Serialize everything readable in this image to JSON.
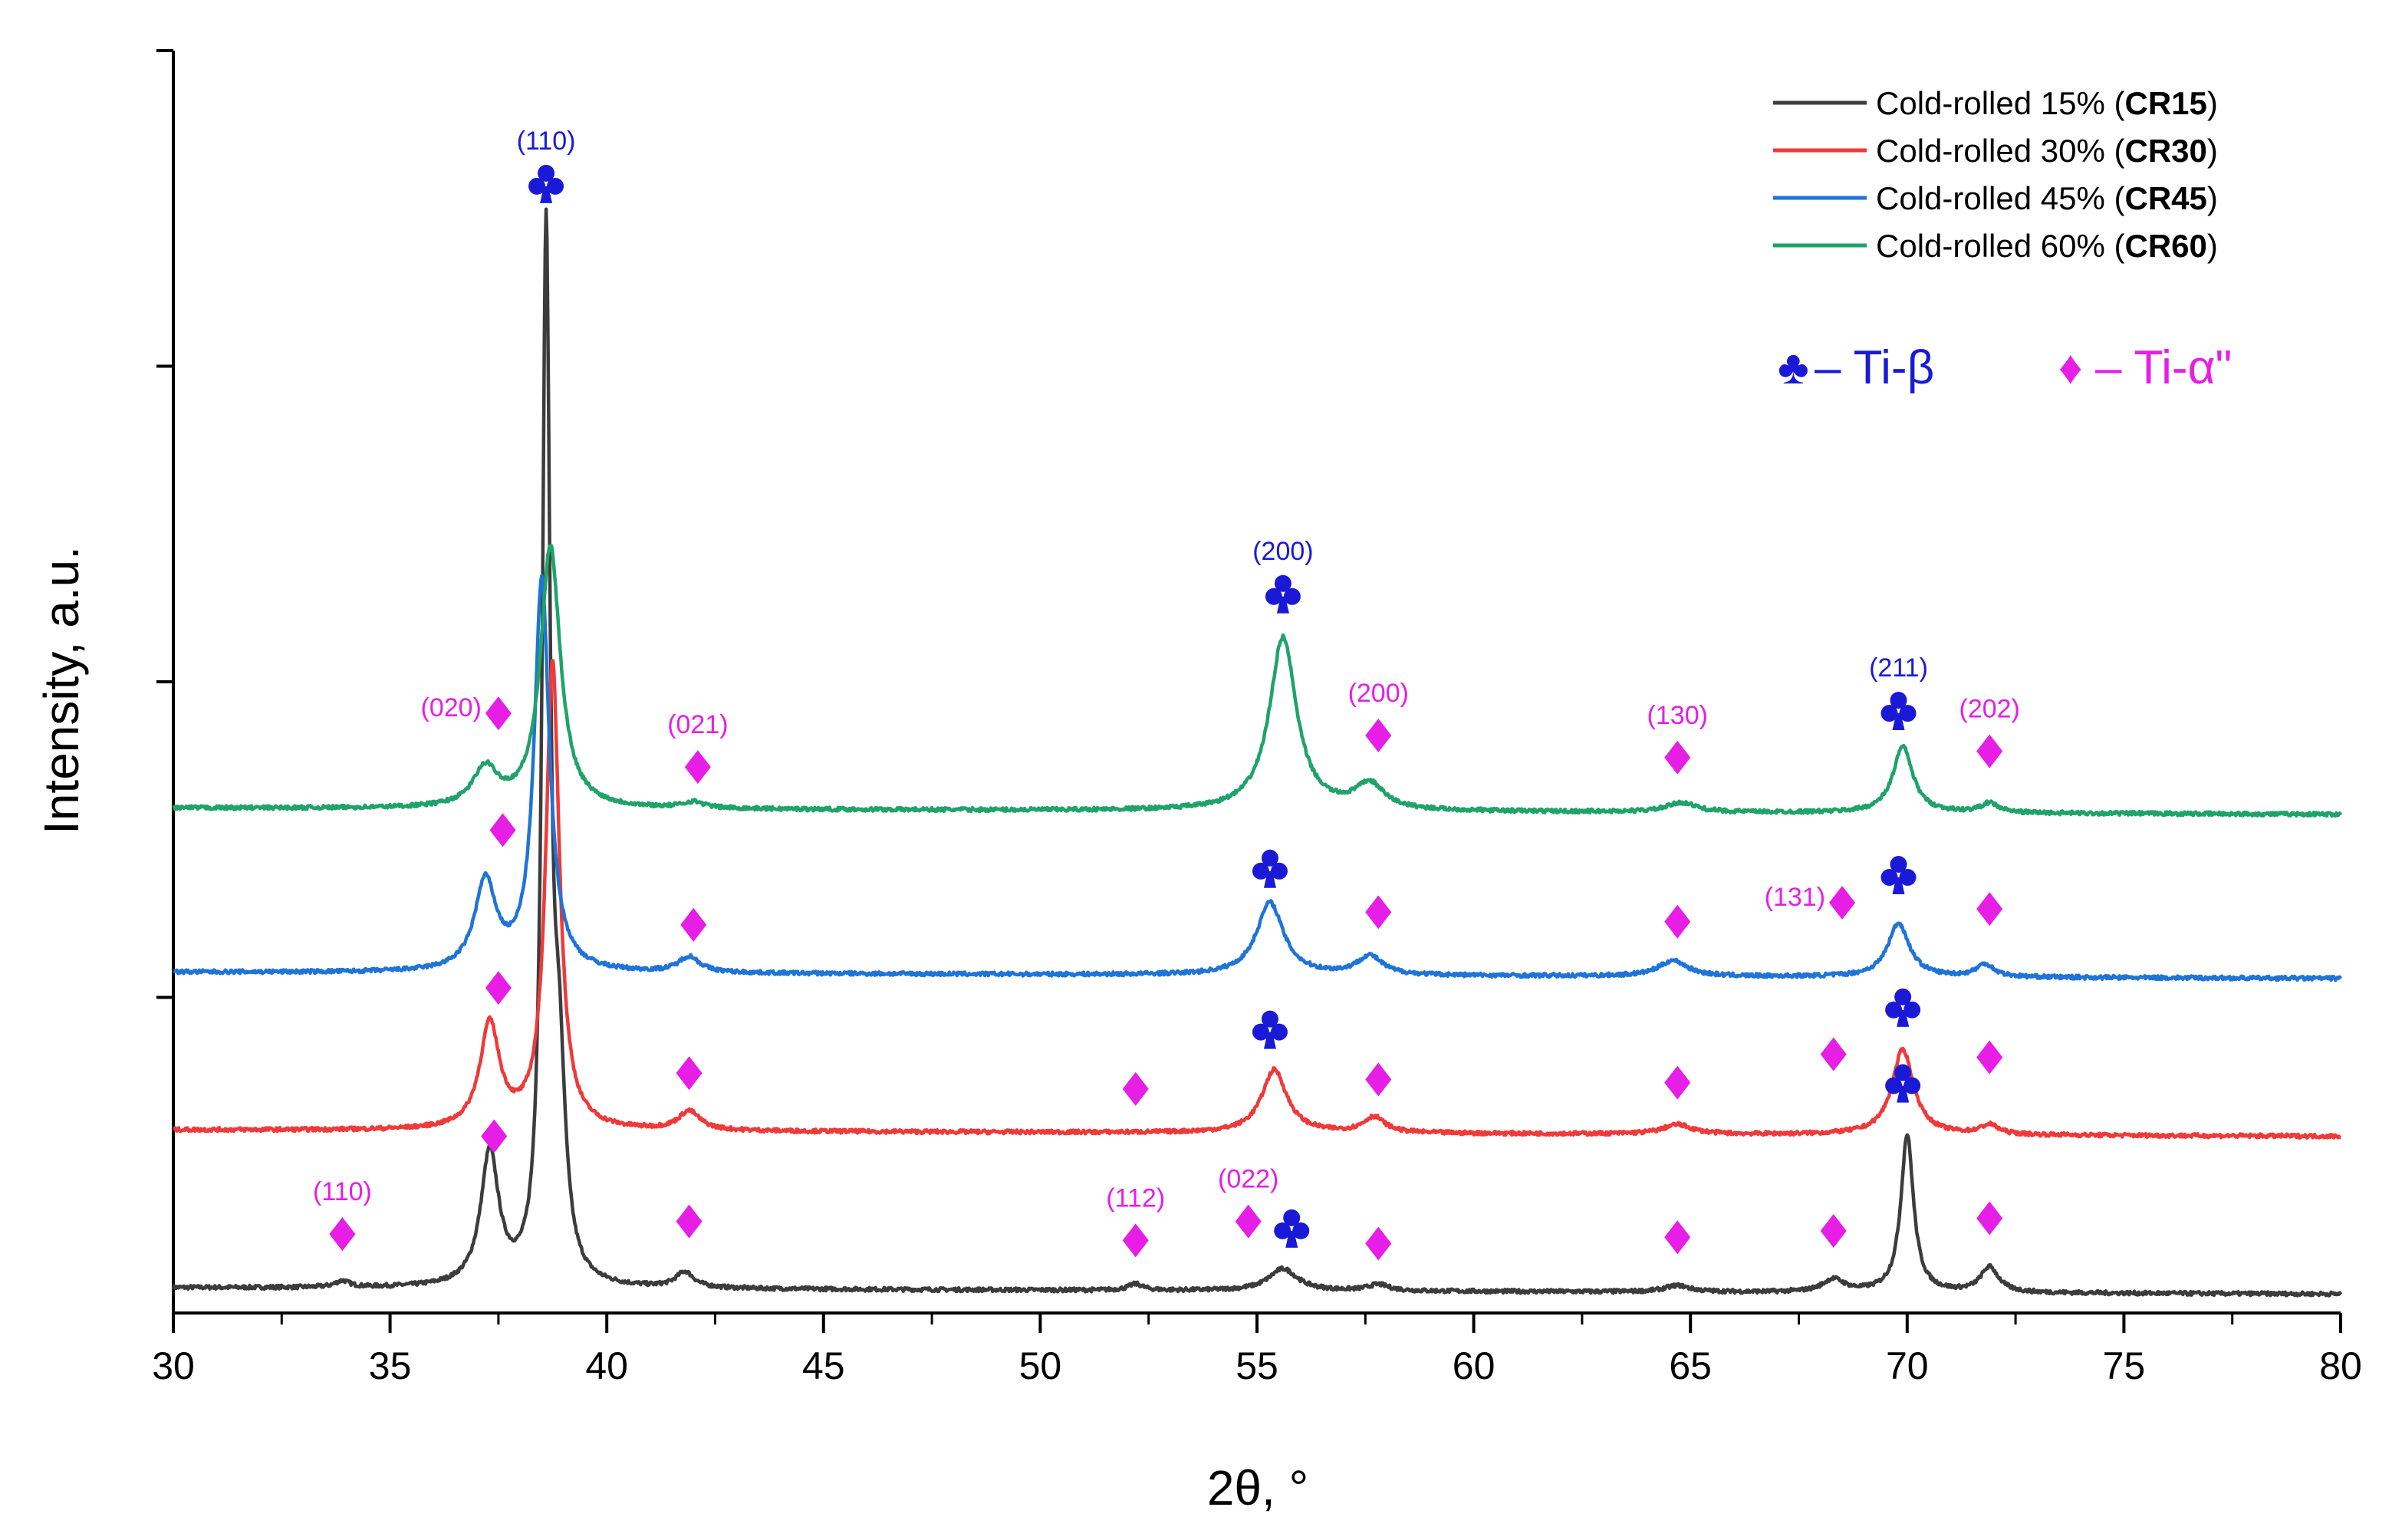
{
  "chart_data": {
    "type": "line",
    "title": "",
    "xlabel": "2θ, °",
    "ylabel": "Intensity, a.u.",
    "xlim": [
      30,
      80
    ],
    "ylim": [
      0,
      4
    ],
    "x_ticks": [
      30,
      35,
      40,
      45,
      50,
      55,
      60,
      65,
      70,
      75,
      80
    ],
    "y_tick_labels_shown": false,
    "legend_position": "top-right",
    "colors": {
      "beta": "#1a1ad6",
      "alpha": "#e61ee6"
    },
    "series": [
      {
        "name": "Cold-rolled 15%",
        "code": "CR15",
        "color": "#3c3c3c",
        "baseline": 0.08,
        "peaks": [
          {
            "x": 33.9,
            "h": 0.02,
            "w": 0.4
          },
          {
            "x": 37.3,
            "h": 0.42,
            "w": 0.5
          },
          {
            "x": 38.6,
            "h": 3.25,
            "w": 0.22
          },
          {
            "x": 38.9,
            "h": 0.6,
            "w": 0.35
          },
          {
            "x": 41.8,
            "h": 0.05,
            "w": 0.5
          },
          {
            "x": 52.2,
            "h": 0.02,
            "w": 0.4
          },
          {
            "x": 55.6,
            "h": 0.07,
            "w": 0.8
          },
          {
            "x": 57.8,
            "h": 0.02,
            "w": 0.6
          },
          {
            "x": 64.7,
            "h": 0.02,
            "w": 0.7
          },
          {
            "x": 68.3,
            "h": 0.04,
            "w": 0.6
          },
          {
            "x": 70.0,
            "h": 0.5,
            "w": 0.35
          },
          {
            "x": 71.9,
            "h": 0.08,
            "w": 0.5
          }
        ]
      },
      {
        "name": "Cold-rolled 30%",
        "code": "CR30",
        "color": "#ee3a3a",
        "baseline": 0.58,
        "peaks": [
          {
            "x": 37.3,
            "h": 0.33,
            "w": 0.55
          },
          {
            "x": 38.75,
            "h": 1.48,
            "w": 0.38
          },
          {
            "x": 41.9,
            "h": 0.06,
            "w": 0.6
          },
          {
            "x": 55.4,
            "h": 0.2,
            "w": 0.7
          },
          {
            "x": 57.7,
            "h": 0.05,
            "w": 0.6
          },
          {
            "x": 64.7,
            "h": 0.03,
            "w": 0.8
          },
          {
            "x": 69.9,
            "h": 0.27,
            "w": 0.6
          },
          {
            "x": 71.9,
            "h": 0.03,
            "w": 0.5
          }
        ]
      },
      {
        "name": "Cold-rolled 45%",
        "code": "CR45",
        "color": "#1f74d6",
        "baseline": 1.08,
        "peaks": [
          {
            "x": 37.2,
            "h": 0.28,
            "w": 0.6
          },
          {
            "x": 38.5,
            "h": 1.24,
            "w": 0.42
          },
          {
            "x": 41.9,
            "h": 0.05,
            "w": 0.6
          },
          {
            "x": 55.3,
            "h": 0.23,
            "w": 0.75
          },
          {
            "x": 57.6,
            "h": 0.06,
            "w": 0.7
          },
          {
            "x": 64.6,
            "h": 0.05,
            "w": 0.8
          },
          {
            "x": 69.8,
            "h": 0.17,
            "w": 0.6
          },
          {
            "x": 71.8,
            "h": 0.04,
            "w": 0.5
          }
        ]
      },
      {
        "name": "Cold-rolled 60%",
        "code": "CR60",
        "color": "#1fa36a",
        "baseline": 1.6,
        "peaks": [
          {
            "x": 37.2,
            "h": 0.12,
            "w": 0.7
          },
          {
            "x": 38.7,
            "h": 0.83,
            "w": 0.55
          },
          {
            "x": 42.0,
            "h": 0.02,
            "w": 0.6
          },
          {
            "x": 55.6,
            "h": 0.55,
            "w": 0.75
          },
          {
            "x": 57.6,
            "h": 0.08,
            "w": 0.8
          },
          {
            "x": 64.8,
            "h": 0.03,
            "w": 0.8
          },
          {
            "x": 69.9,
            "h": 0.21,
            "w": 0.55
          },
          {
            "x": 71.9,
            "h": 0.03,
            "w": 0.5
          }
        ]
      }
    ],
    "markers": [
      {
        "phase": "beta",
        "x": 38.6,
        "y": 3.58,
        "label": "(110)"
      },
      {
        "phase": "beta",
        "x": 55.6,
        "y": 2.28,
        "label": "(200)"
      },
      {
        "phase": "beta",
        "x": 69.8,
        "y": 1.91,
        "label": "(211)"
      },
      {
        "phase": "beta",
        "x": 55.3,
        "y": 1.41,
        "label": ""
      },
      {
        "phase": "beta",
        "x": 69.8,
        "y": 1.39,
        "label": ""
      },
      {
        "phase": "beta",
        "x": 55.3,
        "y": 0.9,
        "label": ""
      },
      {
        "phase": "beta",
        "x": 69.9,
        "y": 0.97,
        "label": ""
      },
      {
        "phase": "beta",
        "x": 69.9,
        "y": 0.73,
        "label": ""
      },
      {
        "phase": "beta",
        "x": 55.8,
        "y": 0.27,
        "label": ""
      },
      {
        "phase": "alpha",
        "x": 37.5,
        "y": 1.9,
        "label": "(020)"
      },
      {
        "phase": "alpha",
        "x": 42.1,
        "y": 1.73,
        "label": "(021)"
      },
      {
        "phase": "alpha",
        "x": 57.8,
        "y": 1.83,
        "label": "(200)"
      },
      {
        "phase": "alpha",
        "x": 64.7,
        "y": 1.76,
        "label": "(130)"
      },
      {
        "phase": "alpha",
        "x": 71.9,
        "y": 1.78,
        "label": "(202)"
      },
      {
        "phase": "alpha",
        "x": 37.6,
        "y": 1.53,
        "label": ""
      },
      {
        "phase": "alpha",
        "x": 42.0,
        "y": 1.23,
        "label": ""
      },
      {
        "phase": "alpha",
        "x": 57.8,
        "y": 1.27,
        "label": ""
      },
      {
        "phase": "alpha",
        "x": 64.7,
        "y": 1.24,
        "label": ""
      },
      {
        "phase": "alpha",
        "x": 68.5,
        "y": 1.3,
        "label": "(131)"
      },
      {
        "phase": "alpha",
        "x": 71.9,
        "y": 1.28,
        "label": ""
      },
      {
        "phase": "alpha",
        "x": 37.5,
        "y": 1.03,
        "label": ""
      },
      {
        "phase": "alpha",
        "x": 41.9,
        "y": 0.76,
        "label": ""
      },
      {
        "phase": "alpha",
        "x": 52.2,
        "y": 0.71,
        "label": ""
      },
      {
        "phase": "alpha",
        "x": 57.8,
        "y": 0.74,
        "label": ""
      },
      {
        "phase": "alpha",
        "x": 64.7,
        "y": 0.73,
        "label": ""
      },
      {
        "phase": "alpha",
        "x": 68.3,
        "y": 0.82,
        "label": ""
      },
      {
        "phase": "alpha",
        "x": 71.9,
        "y": 0.81,
        "label": ""
      },
      {
        "phase": "alpha",
        "x": 37.4,
        "y": 0.56,
        "label": ""
      },
      {
        "phase": "alpha",
        "x": 33.9,
        "y": 0.25,
        "label": "(110)"
      },
      {
        "phase": "alpha",
        "x": 41.9,
        "y": 0.29,
        "label": ""
      },
      {
        "phase": "alpha",
        "x": 52.2,
        "y": 0.23,
        "label": "(112)"
      },
      {
        "phase": "alpha",
        "x": 54.8,
        "y": 0.29,
        "label": "(022)"
      },
      {
        "phase": "alpha",
        "x": 57.8,
        "y": 0.22,
        "label": ""
      },
      {
        "phase": "alpha",
        "x": 64.7,
        "y": 0.24,
        "label": ""
      },
      {
        "phase": "alpha",
        "x": 68.3,
        "y": 0.26,
        "label": ""
      },
      {
        "phase": "alpha",
        "x": 71.9,
        "y": 0.3,
        "label": ""
      }
    ],
    "phase_legend": [
      {
        "phase": "beta",
        "symbol": "♣",
        "label": "– Ti-β"
      },
      {
        "phase": "alpha",
        "symbol": "♦",
        "label": "– Ti-α\""
      }
    ]
  }
}
